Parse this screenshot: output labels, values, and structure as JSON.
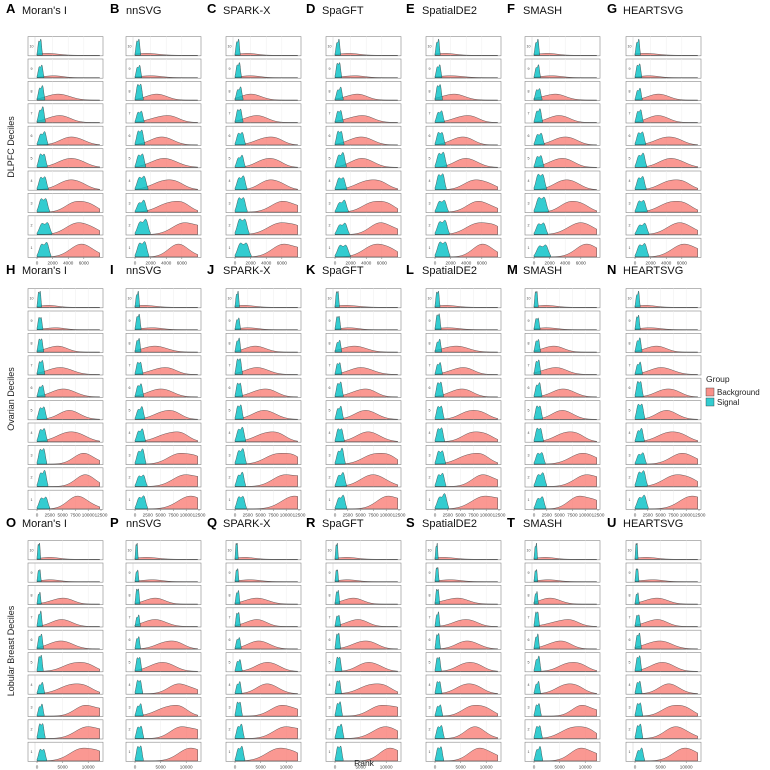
{
  "figure": {
    "xlabel": "Rank",
    "legend": {
      "title": "Group",
      "position": "right",
      "items": [
        {
          "label": "Background",
          "color": "#F8766D"
        },
        {
          "label": "Signal",
          "color": "#00BFC4"
        }
      ]
    }
  },
  "chart_data": {
    "type": "area",
    "chart_kind": "stacked ridgeline density plots",
    "grid": true,
    "legend_placement": "right",
    "colors": {
      "Background": "#F8766D",
      "Signal": "#00BFC4",
      "panel_border": "#888888",
      "grid": "#eeeeee"
    },
    "deciles_top_to_bottom": [
      "10",
      "9",
      "8",
      "7",
      "6",
      "5",
      "4",
      "3",
      "2",
      "1"
    ],
    "methods": [
      "Moran's I",
      "nnSVG",
      "SPARK-X",
      "SpaGFT",
      "SpatialDE2",
      "SMASH",
      "HEARTSVG"
    ],
    "datasets": [
      {
        "ylabel": "DLPFC Deciles",
        "letters": [
          "A",
          "B",
          "C",
          "D",
          "E",
          "F",
          "G"
        ],
        "xlim": [
          0,
          8200
        ],
        "xticks": [
          0,
          2000,
          4000,
          6000
        ],
        "xtick_labels": [
          "0",
          "2000",
          "4000",
          "6000"
        ],
        "signal_max_approx": 2000
      },
      {
        "ylabel": "Ovarian Deciles",
        "letters": [
          "H",
          "I",
          "J",
          "K",
          "L",
          "M",
          "N"
        ],
        "xlim": [
          0,
          12500
        ],
        "xticks": [
          0,
          2500,
          5000,
          7500,
          10000,
          12500
        ],
        "xtick_labels": [
          "0",
          "2500",
          "5000",
          "7500",
          "10000",
          "12500"
        ],
        "signal_max_approx": 2500
      },
      {
        "ylabel": "Lobular Breast Deciles",
        "letters": [
          "O",
          "P",
          "Q",
          "R",
          "S",
          "T",
          "U"
        ],
        "xlim": [
          0,
          12500
        ],
        "xticks": [
          0,
          5000,
          10000
        ],
        "xtick_labels": [
          "0",
          "5000",
          "10000"
        ],
        "signal_max_approx": 1800
      }
    ]
  }
}
